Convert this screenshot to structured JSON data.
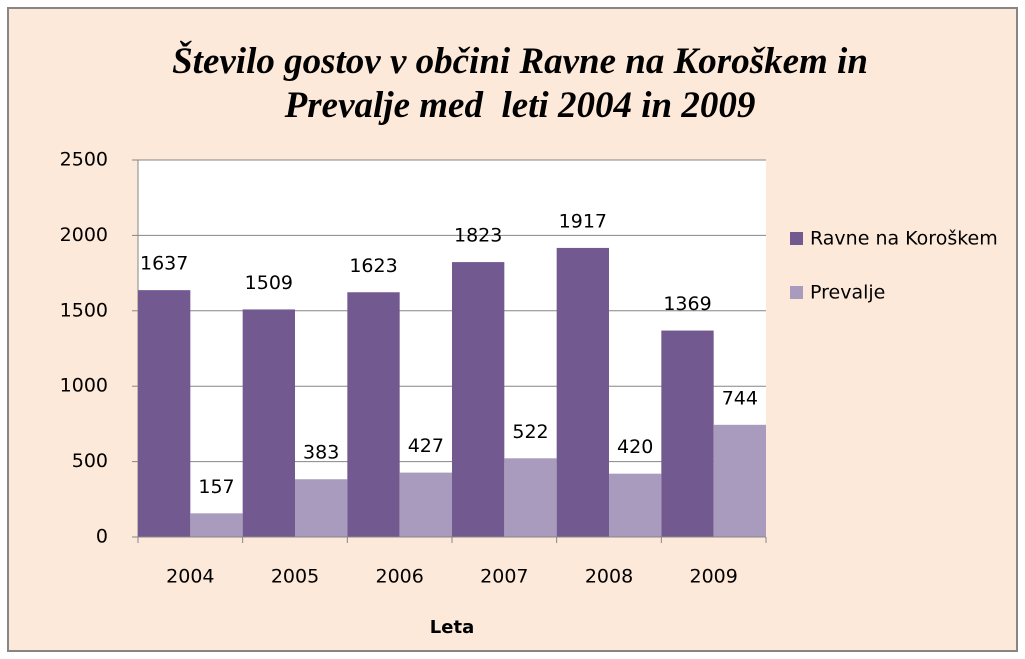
{
  "chart_data": {
    "type": "bar",
    "title": "Število gostov v občini Ravne na Koroškem in Prevalje med  leti 2004 in 2009",
    "x_label": "Leta",
    "categories": [
      "2004",
      "2005",
      "2006",
      "2007",
      "2008",
      "2009"
    ],
    "series": [
      {
        "name": "Ravne na Koroškem",
        "color": "#725990",
        "values": [
          1637,
          1509,
          1623,
          1823,
          1917,
          1369
        ]
      },
      {
        "name": "Prevalje",
        "color": "#a99bbd",
        "values": [
          157,
          383,
          427,
          522,
          420,
          744
        ]
      }
    ],
    "ylim": [
      0,
      2500
    ],
    "yticks": [
      0,
      500,
      1000,
      1500,
      2000,
      2500
    ],
    "grid": true,
    "legend": "right"
  }
}
